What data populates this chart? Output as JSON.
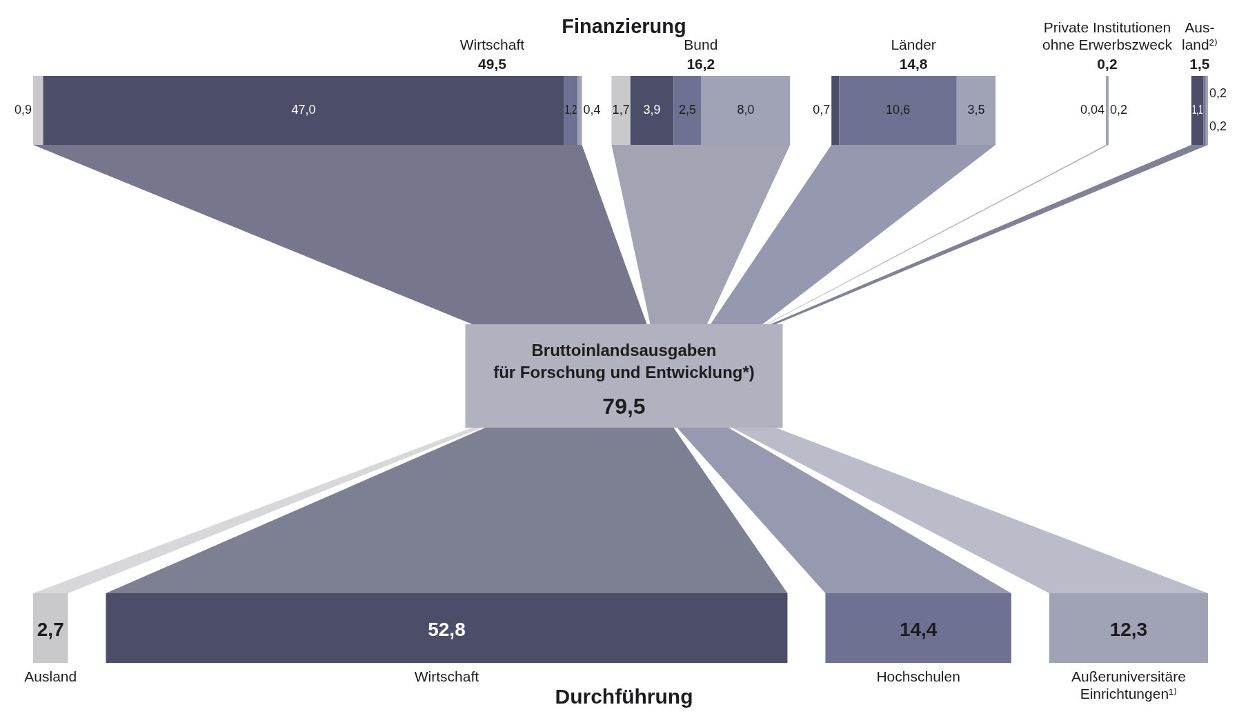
{
  "chart_data": [
    {
      "type": "other",
      "title": "Finanzierung",
      "categories": [
        "Wirtschaft",
        "Bund",
        "Länder",
        "Private Institutionen ohne Erwerbszweck",
        "Aus-\nland²⁾"
      ],
      "series": [
        {
          "color": "#c9c9cb",
          "values": [
            0.9,
            1.7,
            null,
            null,
            null
          ],
          "value_labels": [
            "0,9",
            "1,7",
            null,
            null,
            null
          ]
        },
        {
          "color": "#4b4d69",
          "values": [
            47.0,
            3.9,
            0.7,
            null,
            1.1
          ],
          "value_labels": [
            "47,0",
            "3,9",
            "0,7",
            null,
            "1,1"
          ]
        },
        {
          "color": "#6e7191",
          "values": [
            1.2,
            2.5,
            10.6,
            0.04,
            0.2
          ],
          "value_labels": [
            "1,2",
            "2,5",
            "10,6",
            "0,04",
            "0,2"
          ]
        },
        {
          "color": "#a0a2b5",
          "values": [
            0.4,
            8.0,
            3.5,
            0.2,
            0.2
          ],
          "value_labels": [
            "0,4",
            "8,0",
            "3,5",
            "0,2",
            "0,2"
          ]
        }
      ],
      "totals": [
        "49,5",
        "16,2",
        "14,8",
        "0,2",
        "1,5"
      ],
      "annotations": [
        "Bruttoinlandsausgaben\nfür Forschung und Entwicklung*)",
        "79,5"
      ]
    },
    {
      "type": "other",
      "xlabel": "Durchführung",
      "categories": [
        "Ausland",
        "Wirtschaft",
        "Hochschulen",
        "Außeruniversitäre Einrichtungen¹⁾"
      ],
      "values": [
        2.7,
        52.8,
        14.4,
        12.3
      ],
      "value_labels": [
        "2,7",
        "52,8",
        "14,4",
        "12,3"
      ],
      "colors": [
        "#c9c9cb",
        "#4b4d69",
        "#6e7191",
        "#a0a2b5"
      ]
    }
  ]
}
